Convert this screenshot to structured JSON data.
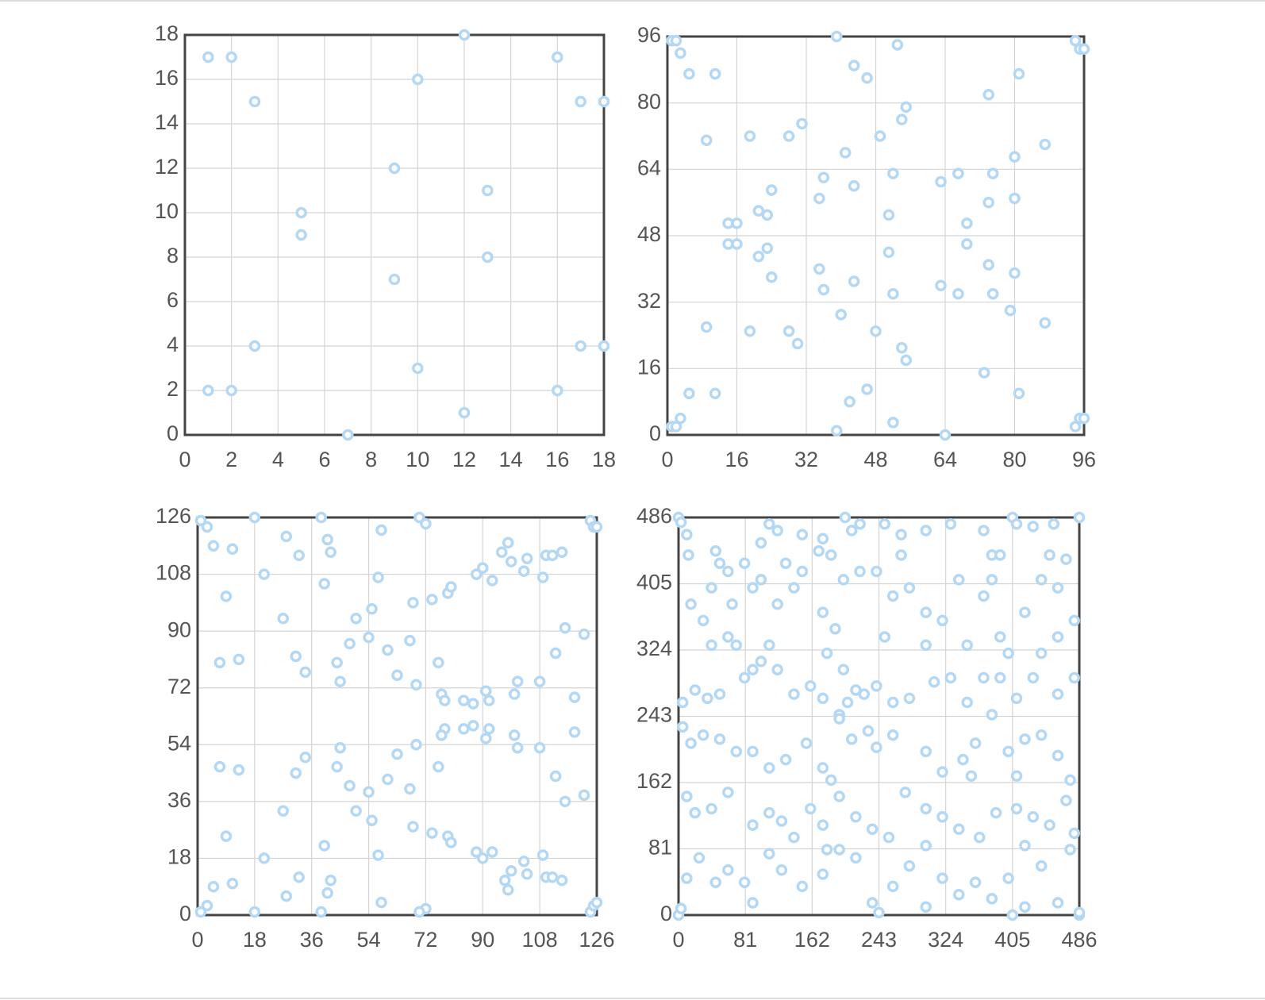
{
  "chart_data": [
    {
      "type": "scatter",
      "color": "#b3d8f5",
      "grid": true,
      "xlim": [
        0,
        18
      ],
      "ylim": [
        0,
        18
      ],
      "xticks": [
        0,
        2,
        4,
        6,
        8,
        10,
        12,
        14,
        16,
        18
      ],
      "yticks": [
        0,
        2,
        4,
        6,
        8,
        10,
        12,
        14,
        16,
        18
      ],
      "x": [
        1,
        2,
        3,
        12,
        10,
        16,
        17,
        18,
        9,
        13,
        5,
        5,
        13,
        9,
        3,
        17,
        18,
        10,
        1,
        2,
        16,
        12,
        7
      ],
      "values": [
        17,
        17,
        15,
        18,
        16,
        17,
        15,
        15,
        12,
        11,
        10,
        9,
        8,
        7,
        4,
        4,
        4,
        3,
        2,
        2,
        2,
        1,
        0
      ]
    },
    {
      "type": "scatter",
      "color": "#b3d8f5",
      "grid": true,
      "xlim": [
        0,
        96
      ],
      "ylim": [
        0,
        96
      ],
      "xticks": [
        0,
        16,
        32,
        48,
        64,
        80,
        96
      ],
      "yticks": [
        0,
        16,
        32,
        48,
        64,
        80,
        96
      ],
      "x": [
        1,
        2,
        3,
        39,
        53,
        94,
        95,
        96,
        5,
        11,
        43,
        46,
        81,
        74,
        55,
        54,
        31,
        28,
        9,
        19,
        49,
        87,
        41,
        80,
        52,
        67,
        75,
        36,
        63,
        43,
        24,
        35,
        80,
        74,
        21,
        23,
        51,
        14,
        16,
        69,
        14,
        16,
        69,
        23,
        21,
        51,
        35,
        74,
        80,
        24,
        43,
        36,
        63,
        52,
        67,
        75,
        79,
        40,
        87,
        9,
        19,
        28,
        48,
        30,
        54,
        55,
        73,
        5,
        11,
        46,
        81,
        42,
        3,
        1,
        2,
        52,
        94,
        95,
        96,
        39,
        64
      ],
      "values": [
        95,
        95,
        92,
        96,
        94,
        95,
        93,
        93,
        87,
        87,
        89,
        86,
        87,
        82,
        79,
        76,
        75,
        72,
        71,
        72,
        72,
        70,
        68,
        67,
        63,
        63,
        63,
        62,
        61,
        60,
        59,
        57,
        57,
        56,
        54,
        53,
        53,
        51,
        51,
        51,
        46,
        46,
        46,
        45,
        43,
        44,
        40,
        41,
        39,
        38,
        37,
        35,
        36,
        34,
        34,
        34,
        30,
        29,
        27,
        26,
        25,
        25,
        25,
        22,
        21,
        18,
        15,
        10,
        10,
        11,
        10,
        8,
        4,
        2,
        2,
        3,
        2,
        4,
        4,
        1,
        0
      ]
    },
    {
      "type": "scatter",
      "color": "#b3d8f5",
      "grid": true,
      "xlim": [
        0,
        126
      ],
      "ylim": [
        0,
        126
      ],
      "xticks": [
        0,
        18,
        36,
        54,
        72,
        90,
        108,
        126
      ],
      "yticks": [
        0,
        18,
        36,
        54,
        72,
        90,
        108,
        126
      ],
      "x": [
        1,
        3,
        18,
        39,
        70,
        72,
        124,
        125,
        126,
        5,
        11,
        28,
        32,
        41,
        42,
        58,
        21,
        40,
        57,
        9,
        68,
        74,
        79,
        80,
        88,
        90,
        93,
        98,
        96,
        99,
        104,
        103,
        109,
        110,
        112,
        115,
        27,
        50,
        55,
        48,
        54,
        67,
        60,
        116,
        122,
        31,
        7,
        13,
        44,
        76,
        113,
        34,
        63,
        45,
        69,
        101,
        108,
        77,
        78,
        84,
        87,
        91,
        92,
        100,
        119,
        78,
        77,
        84,
        87,
        92,
        91,
        100,
        101,
        108,
        119,
        45,
        69,
        63,
        34,
        7,
        13,
        44,
        76,
        31,
        113,
        60,
        48,
        67,
        54,
        122,
        116,
        27,
        50,
        55,
        68,
        74,
        9,
        79,
        80,
        40,
        57,
        21,
        88,
        93,
        90,
        109,
        103,
        99,
        104,
        110,
        112,
        115,
        97,
        98,
        42,
        41,
        32,
        11,
        5,
        28,
        58,
        3,
        1,
        72,
        70,
        18,
        39,
        124,
        125,
        126
      ],
      "values": [
        125,
        123,
        126,
        126,
        126,
        124,
        125,
        123,
        123,
        117,
        116,
        120,
        114,
        119,
        115,
        122,
        108,
        105,
        107,
        101,
        99,
        100,
        102,
        104,
        108,
        110,
        106,
        118,
        115,
        112,
        113,
        109,
        107,
        114,
        114,
        115,
        94,
        94,
        97,
        86,
        88,
        87,
        84,
        91,
        89,
        82,
        80,
        81,
        80,
        80,
        83,
        77,
        76,
        74,
        73,
        74,
        74,
        70,
        68,
        68,
        67,
        71,
        68,
        70,
        69,
        59,
        57,
        59,
        60,
        59,
        56,
        57,
        53,
        53,
        58,
        53,
        54,
        51,
        50,
        47,
        46,
        47,
        47,
        45,
        44,
        43,
        41,
        40,
        39,
        38,
        36,
        33,
        33,
        30,
        28,
        26,
        25,
        25,
        23,
        22,
        19,
        18,
        20,
        20,
        18,
        19,
        17,
        14,
        13,
        12,
        12,
        11,
        11,
        8,
        11,
        7,
        12,
        10,
        9,
        6,
        4,
        3,
        1,
        2,
        1,
        1,
        1,
        1,
        3,
        4
      ]
    },
    {
      "type": "scatter",
      "color": "#b3d8f5",
      "grid": true,
      "xlim": [
        0,
        486
      ],
      "ylim": [
        0,
        486
      ],
      "xticks": [
        0,
        81,
        162,
        243,
        324,
        405,
        486
      ],
      "yticks": [
        0,
        81,
        162,
        243,
        324,
        405,
        486
      ],
      "x": [
        0,
        3,
        486,
        486,
        0,
        3,
        202,
        243,
        405,
        405,
        486,
        10,
        12,
        50,
        45,
        80,
        100,
        110,
        120,
        150,
        170,
        175,
        185,
        210,
        220,
        250,
        270,
        300,
        330,
        370,
        380,
        390,
        410,
        430,
        455,
        470,
        450,
        270,
        240,
        130,
        15,
        30,
        40,
        60,
        65,
        40,
        60,
        90,
        100,
        120,
        140,
        150,
        175,
        190,
        200,
        220,
        260,
        280,
        300,
        320,
        340,
        350,
        370,
        380,
        390,
        420,
        440,
        460,
        480,
        460,
        440,
        400,
        300,
        250,
        200,
        180,
        110,
        90,
        70,
        5,
        20,
        35,
        50,
        80,
        100,
        120,
        140,
        160,
        175,
        195,
        205,
        215,
        225,
        240,
        260,
        280,
        310,
        330,
        350,
        370,
        390,
        410,
        430,
        460,
        480,
        5,
        15,
        30,
        50,
        70,
        90,
        110,
        130,
        155,
        175,
        185,
        195,
        210,
        230,
        240,
        260,
        300,
        320,
        345,
        360,
        380,
        400,
        420,
        440,
        460,
        475,
        410,
        355,
        10,
        20,
        40,
        60,
        90,
        110,
        125,
        140,
        160,
        175,
        195,
        215,
        235,
        255,
        275,
        300,
        320,
        340,
        365,
        385,
        410,
        430,
        450,
        470,
        480,
        420,
        300,
        180,
        10,
        25,
        45,
        60,
        80,
        90,
        110,
        125,
        150,
        175,
        195,
        215,
        235,
        260,
        280,
        300,
        320,
        340,
        360,
        380,
        400,
        420,
        440,
        460,
        475
      ],
      "values": [
        486,
        480,
        486,
        0,
        0,
        8,
        486,
        3,
        486,
        0,
        3,
        465,
        440,
        430,
        445,
        430,
        455,
        478,
        470,
        465,
        445,
        460,
        440,
        470,
        478,
        478,
        465,
        470,
        478,
        470,
        440,
        440,
        478,
        475,
        478,
        435,
        440,
        440,
        420,
        430,
        380,
        360,
        330,
        340,
        380,
        400,
        420,
        400,
        410,
        380,
        400,
        420,
        370,
        350,
        410,
        420,
        390,
        400,
        370,
        360,
        410,
        330,
        390,
        410,
        340,
        370,
        410,
        400,
        360,
        340,
        320,
        320,
        330,
        340,
        300,
        320,
        330,
        300,
        330,
        260,
        275,
        265,
        270,
        290,
        310,
        300,
        270,
        280,
        265,
        245,
        260,
        275,
        270,
        280,
        260,
        265,
        285,
        290,
        260,
        290,
        290,
        265,
        290,
        270,
        290,
        230,
        210,
        220,
        215,
        200,
        200,
        180,
        190,
        210,
        180,
        165,
        240,
        215,
        225,
        205,
        220,
        200,
        175,
        190,
        210,
        245,
        200,
        215,
        220,
        195,
        165,
        170,
        170,
        145,
        125,
        130,
        150,
        110,
        125,
        115,
        95,
        130,
        110,
        145,
        120,
        105,
        95,
        150,
        130,
        120,
        105,
        95,
        125,
        130,
        120,
        110,
        140,
        100,
        85,
        85,
        80,
        45,
        70,
        40,
        55,
        40,
        15,
        75,
        55,
        35,
        50,
        80,
        70,
        15,
        35,
        60,
        10,
        45,
        25,
        40,
        20,
        45,
        10,
        60,
        15,
        80
      ]
    }
  ]
}
